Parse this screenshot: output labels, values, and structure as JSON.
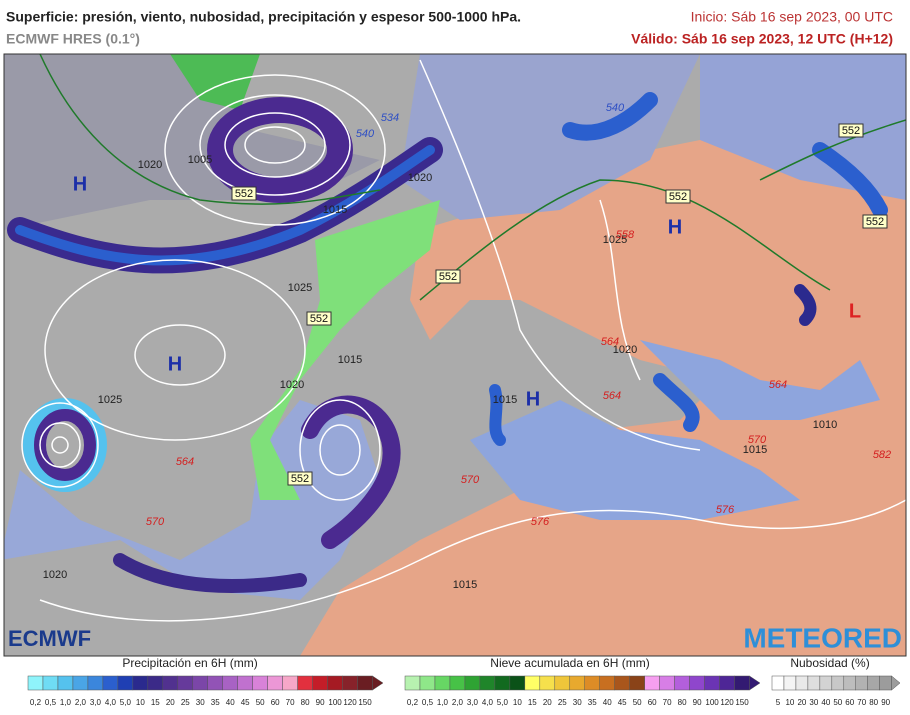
{
  "header": {
    "title": "Superficie: presión, viento, nubosidad, precipitación y espesor 500-1000 hPa.",
    "model": "ECMWF HRES (0.1°)",
    "init": "Inicio: Sáb 16 sep 2023, 00 UTC",
    "valid": "Válido: Sáb 16 sep 2023, 12 UTC (H+12)"
  },
  "map": {
    "centers": [
      "H",
      "H",
      "H",
      "H",
      "L"
    ],
    "isobars": [
      "1020",
      "1005",
      "1015",
      "1025",
      "1025",
      "1020",
      "1015",
      "1015",
      "1010",
      "1020",
      "1025",
      "1020",
      "1015",
      "1020",
      "1015"
    ],
    "thickness": [
      "564",
      "564",
      "570",
      "570",
      "576",
      "576",
      "558",
      "564",
      "570",
      "582",
      "564",
      "534",
      "540",
      "540"
    ],
    "boxed": [
      "552",
      "552",
      "552",
      "552",
      "552",
      "552",
      "552"
    ]
  },
  "logos": {
    "left": "ECMWF",
    "right": "METEORED"
  },
  "legend": {
    "precip": {
      "title": "Precipitación en 6H (mm)",
      "ticks": [
        "0,2",
        "0,5",
        "1,0",
        "2,0",
        "3,0",
        "4,0",
        "5,0",
        "10",
        "15",
        "20",
        "25",
        "30",
        "35",
        "40",
        "45",
        "50",
        "60",
        "70",
        "80",
        "90",
        "100",
        "120",
        "150"
      ],
      "colors": [
        "#8ff4fb",
        "#6fdcf4",
        "#55c2ee",
        "#4aa5e6",
        "#3b86dc",
        "#2b5fce",
        "#1f3fb3",
        "#2a2a8e",
        "#3b2a88",
        "#51318f",
        "#663a9b",
        "#7b46a8",
        "#9253b6",
        "#a862c4",
        "#c071cf",
        "#d882d8",
        "#ec97d6",
        "#f6a7c8",
        "#e2303e",
        "#c41d28",
        "#a51a23",
        "#87222a",
        "#6a1d22"
      ]
    },
    "snow": {
      "title": "Nieve acumulada en 6H (mm)",
      "ticks": [
        "0,2",
        "0,5",
        "1,0",
        "2,0",
        "3,0",
        "4,0",
        "5,0",
        "10",
        "15",
        "20",
        "25",
        "30",
        "35",
        "40",
        "45",
        "50",
        "60",
        "70",
        "80",
        "90",
        "100",
        "120",
        "150"
      ],
      "colors": [
        "#b7f2b0",
        "#8fe789",
        "#67d764",
        "#47c247",
        "#2ea333",
        "#1f852a",
        "#126a1f",
        "#0b5218",
        "#ffff66",
        "#f6e04c",
        "#efc63a",
        "#e8a92e",
        "#dd8c26",
        "#c86f20",
        "#a9561c",
        "#8a4318",
        "#f69ff0",
        "#d77ee6",
        "#b35fdc",
        "#8f46cc",
        "#6b34b4",
        "#4e2696",
        "#331a72"
      ]
    },
    "cloud": {
      "title": "Nubosidad (%)",
      "ticks": [
        "5",
        "10",
        "20",
        "30",
        "40",
        "50",
        "60",
        "70",
        "80",
        "90"
      ],
      "colors": [
        "#ffffff",
        "#f4f4f4",
        "#e9e9e9",
        "#dedede",
        "#d3d3d3",
        "#c8c8c8",
        "#bdbdbd",
        "#b2b2b2",
        "#a7a7a7",
        "#9c9c9c"
      ]
    }
  }
}
